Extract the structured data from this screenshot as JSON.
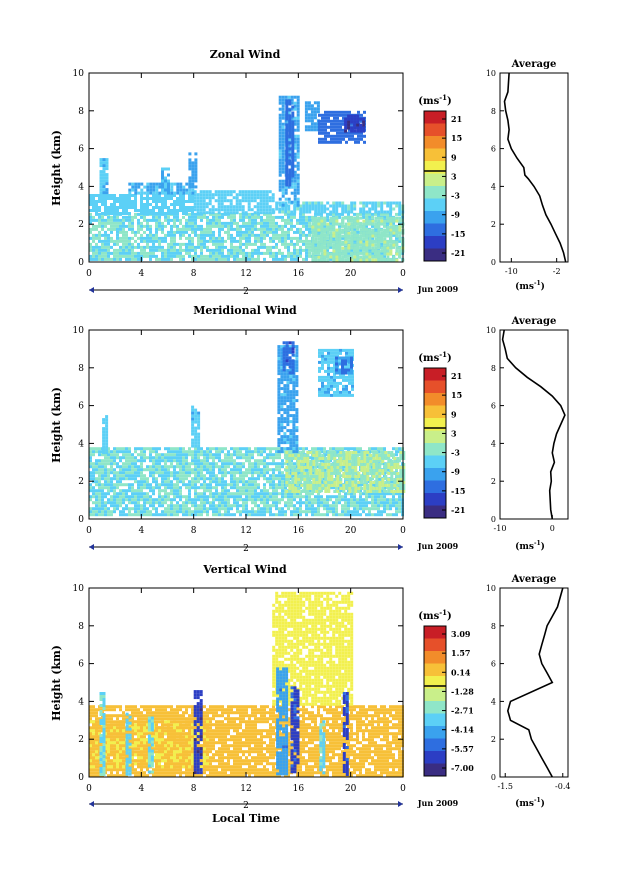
{
  "chart_data": [
    {
      "type": "heatmap",
      "title": "Zonal Wind",
      "ylabel": "Height (km)",
      "ylim": [
        0,
        10
      ],
      "xlim": [
        0,
        24
      ],
      "x_ticks": [
        "0",
        "4",
        "8",
        "12",
        "16",
        "20",
        "0"
      ],
      "y_ticks": [
        "0",
        "2",
        "4",
        "6",
        "8",
        "10"
      ],
      "date_marker": "2",
      "date_label": "Jun 2009",
      "colorbar": {
        "unit_base": "(ms",
        "unit_exp": "-1",
        "unit_close": ")",
        "ticks": [
          "21",
          "15",
          "9",
          "3",
          "-3",
          "-9",
          "-15",
          "-21"
        ],
        "range": [
          -24,
          24
        ]
      },
      "fields": [
        {
          "xr": [
            0,
            24
          ],
          "yr": [
            0.1,
            2.6
          ],
          "v": -4
        },
        {
          "xr": [
            0,
            8
          ],
          "yr": [
            2.6,
            3.6
          ],
          "v": -6
        },
        {
          "xr": [
            8,
            14
          ],
          "yr": [
            2.6,
            3.8
          ],
          "v": -6
        },
        {
          "xr": [
            14,
            24
          ],
          "yr": [
            2.6,
            3.2
          ],
          "v": -5
        },
        {
          "xr": [
            3,
            8
          ],
          "yr": [
            3.6,
            4.2
          ],
          "v": -8
        },
        {
          "xr": [
            14.5,
            16
          ],
          "yr": [
            3,
            8.8
          ],
          "v": -9
        },
        {
          "xr": [
            15,
            15.6
          ],
          "yr": [
            4,
            8.6
          ],
          "v": -14
        },
        {
          "xr": [
            16.5,
            17.5
          ],
          "yr": [
            7,
            8.5
          ],
          "v": -10
        },
        {
          "xr": [
            17.5,
            21
          ],
          "yr": [
            6.3,
            8
          ],
          "v": -14
        },
        {
          "xr": [
            19.5,
            21
          ],
          "yr": [
            7,
            7.8
          ],
          "v": -19
        },
        {
          "xr": [
            7.6,
            8.2
          ],
          "yr": [
            4,
            5.8
          ],
          "v": -10
        },
        {
          "xr": [
            5.5,
            6
          ],
          "yr": [
            3.6,
            5
          ],
          "v": -8
        },
        {
          "xr": [
            0.8,
            1.4
          ],
          "yr": [
            3.6,
            5.5
          ],
          "v": -7
        },
        {
          "xr": [
            17,
            24
          ],
          "yr": [
            0.1,
            2.4
          ],
          "v": -1
        }
      ],
      "avg_profile": {
        "title": "Average",
        "unit_base": "(ms",
        "unit_exp": "-1",
        "unit_close": ")",
        "xlim": [
          -12,
          0
        ],
        "x_ticks": [
          "-10",
          "-2"
        ],
        "y_ticks": [
          "0",
          "2",
          "4",
          "6",
          "8",
          "10"
        ],
        "x": [
          -0.4,
          -0.8,
          -1.4,
          -2.2,
          -3.0,
          -3.9,
          -4.5,
          -5.0,
          -6.0,
          -7.0,
          -7.6,
          -7.8,
          -9.0,
          -10.0,
          -10.6,
          -10.4,
          -10.6,
          -11.0,
          -11.2,
          -10.6,
          -10.4
        ],
        "y": [
          0,
          0.5,
          1.0,
          1.5,
          2.0,
          2.5,
          3.0,
          3.5,
          4.0,
          4.4,
          4.6,
          5.0,
          5.5,
          6.0,
          6.5,
          7.0,
          7.5,
          8.0,
          8.5,
          9.0,
          10.0
        ]
      }
    },
    {
      "type": "heatmap",
      "title": "Meridional Wind",
      "ylabel": "Height (km)",
      "ylim": [
        0,
        10
      ],
      "xlim": [
        0,
        24
      ],
      "x_ticks": [
        "0",
        "4",
        "8",
        "12",
        "16",
        "20",
        "0"
      ],
      "y_ticks": [
        "0",
        "2",
        "4",
        "6",
        "8",
        "10"
      ],
      "date_marker": "2",
      "date_label": "Jun 2009",
      "colorbar": {
        "unit_base": "(ms",
        "unit_exp": "-1",
        "unit_close": ")",
        "ticks": [
          "21",
          "15",
          "9",
          "3",
          "-3",
          "-9",
          "-15",
          "-21"
        ],
        "range": [
          -24,
          24
        ]
      },
      "fields": [
        {
          "xr": [
            0,
            24
          ],
          "yr": [
            0.3,
            3.8
          ],
          "v": -4
        },
        {
          "xr": [
            15,
            24
          ],
          "yr": [
            1.5,
            3.6
          ],
          "v": 0
        },
        {
          "xr": [
            14.4,
            16
          ],
          "yr": [
            3.5,
            9.2
          ],
          "v": -9
        },
        {
          "xr": [
            14.8,
            15.6
          ],
          "yr": [
            7.8,
            9.4
          ],
          "v": -15
        },
        {
          "xr": [
            17.5,
            20.2
          ],
          "yr": [
            6.5,
            9.0
          ],
          "v": -7
        },
        {
          "xr": [
            18.8,
            20
          ],
          "yr": [
            7.8,
            8.6
          ],
          "v": -12
        },
        {
          "xr": [
            7.8,
            8.4
          ],
          "yr": [
            3.8,
            6.0
          ],
          "v": -7
        },
        {
          "xr": [
            1.0,
            1.4
          ],
          "yr": [
            3.5,
            5.5
          ],
          "v": -6
        }
      ],
      "avg_profile": {
        "title": "Average",
        "unit_base": "(ms",
        "unit_exp": "-1",
        "unit_close": ")",
        "xlim": [
          -10,
          3
        ],
        "x_ticks": [
          "-10",
          "0"
        ],
        "y_ticks": [
          "0",
          "2",
          "4",
          "6",
          "8",
          "10"
        ],
        "x": [
          0.0,
          -0.3,
          -0.4,
          -0.5,
          -0.2,
          -0.3,
          0.4,
          0.0,
          0.3,
          0.8,
          2.4,
          1.6,
          0.0,
          -2.2,
          -4.8,
          -7.0,
          -8.6,
          -9.0,
          -9.5,
          -9.2
        ],
        "y": [
          0,
          0.5,
          1.0,
          1.5,
          2.0,
          2.5,
          3.0,
          3.5,
          4.0,
          4.5,
          5.5,
          6.0,
          6.5,
          7.0,
          7.5,
          8.0,
          8.5,
          9.0,
          9.5,
          10.0
        ]
      }
    },
    {
      "type": "heatmap",
      "title": "Vertical Wind",
      "ylabel": "Height (km)",
      "xlabel": "Local Time",
      "ylim": [
        0,
        10
      ],
      "xlim": [
        0,
        24
      ],
      "x_ticks": [
        "0",
        "4",
        "8",
        "12",
        "16",
        "20",
        "0"
      ],
      "y_ticks": [
        "0",
        "2",
        "4",
        "6",
        "8",
        "10"
      ],
      "date_marker": "2",
      "date_label": "Jun 2009",
      "colorbar": {
        "unit_base": "(ms",
        "unit_exp": "-1",
        "unit_close": ")",
        "ticks": [
          "3.09",
          "1.57",
          "0.14",
          "-1.28",
          "-2.71",
          "-4.14",
          "-5.57",
          "-7.00"
        ],
        "range": [
          -7.7,
          3.8
        ]
      },
      "fields": [
        {
          "xr": [
            0,
            24
          ],
          "yr": [
            0,
            3.8
          ],
          "v": 0.5
        },
        {
          "xr": [
            0,
            9
          ],
          "yr": [
            0.5,
            3.0
          ],
          "v": 0.1
        },
        {
          "xr": [
            14,
            20
          ],
          "yr": [
            3.8,
            9.8
          ],
          "v": -0.6
        },
        {
          "xr": [
            0.8,
            1.2
          ],
          "yr": [
            0.2,
            4.5
          ],
          "v": -3.0
        },
        {
          "xr": [
            2.8,
            3.2
          ],
          "yr": [
            0.2,
            3.4
          ],
          "v": -3.5
        },
        {
          "xr": [
            4.5,
            4.8
          ],
          "yr": [
            0.2,
            3.2
          ],
          "v": -3.0
        },
        {
          "xr": [
            8.0,
            8.6
          ],
          "yr": [
            0.2,
            4.6
          ],
          "v": -6.5
        },
        {
          "xr": [
            14.3,
            15.2
          ],
          "yr": [
            0.2,
            5.8
          ],
          "v": -4.5
        },
        {
          "xr": [
            15.4,
            16.0
          ],
          "yr": [
            0.2,
            4.8
          ],
          "v": -6.0
        },
        {
          "xr": [
            17.6,
            18.0
          ],
          "yr": [
            0.2,
            3.0
          ],
          "v": -3.0
        },
        {
          "xr": [
            19.4,
            19.8
          ],
          "yr": [
            0.2,
            4.5
          ],
          "v": -6.0
        }
      ],
      "avg_profile": {
        "title": "Average",
        "unit_base": "(ms",
        "unit_exp": "-1",
        "unit_close": ")",
        "xlim": [
          -1.6,
          -0.3
        ],
        "x_ticks": [
          "-1.5",
          "-0.4"
        ],
        "y_ticks": [
          "0",
          "2",
          "4",
          "6",
          "8",
          "10"
        ],
        "x": [
          -0.6,
          -0.7,
          -0.8,
          -0.9,
          -1.0,
          -1.05,
          -1.4,
          -1.45,
          -1.4,
          -0.6,
          -0.7,
          -0.8,
          -0.85,
          -0.8,
          -0.75,
          -0.7,
          -0.6,
          -0.5,
          -0.4
        ],
        "y": [
          0,
          0.5,
          1.0,
          1.5,
          2.0,
          2.5,
          3.0,
          3.5,
          4.0,
          5.0,
          5.5,
          6.0,
          6.5,
          7.0,
          7.5,
          8.0,
          8.5,
          9.0,
          10.0
        ]
      }
    }
  ]
}
